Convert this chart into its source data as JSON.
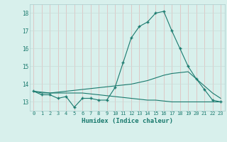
{
  "xlabel": "Humidex (Indice chaleur)",
  "x_values": [
    0,
    1,
    2,
    3,
    4,
    5,
    6,
    7,
    8,
    9,
    10,
    11,
    12,
    13,
    14,
    15,
    16,
    17,
    18,
    19,
    20,
    21,
    22,
    23
  ],
  "line1": [
    13.6,
    13.4,
    13.4,
    13.2,
    13.3,
    12.7,
    13.2,
    13.2,
    13.1,
    13.1,
    13.8,
    15.2,
    16.6,
    17.25,
    17.5,
    18.0,
    18.1,
    17.0,
    16.0,
    15.0,
    14.3,
    13.7,
    13.1,
    13.0
  ],
  "line2": [
    13.6,
    13.5,
    13.5,
    13.55,
    13.6,
    13.65,
    13.7,
    13.75,
    13.8,
    13.85,
    13.9,
    13.95,
    14.0,
    14.1,
    14.2,
    14.35,
    14.5,
    14.6,
    14.65,
    14.7,
    14.3,
    13.9,
    13.5,
    13.2
  ],
  "line3": [
    13.6,
    13.55,
    13.5,
    13.5,
    13.5,
    13.5,
    13.5,
    13.45,
    13.4,
    13.35,
    13.3,
    13.25,
    13.2,
    13.15,
    13.1,
    13.1,
    13.05,
    13.0,
    13.0,
    13.0,
    13.0,
    13.0,
    13.0,
    13.0
  ],
  "line_color": "#1a7a6e",
  "bg_color": "#d8f0ec",
  "grid_color": "#c8ddd8",
  "grid_color_v": "#e0b8b8",
  "ylim": [
    12.5,
    18.5
  ],
  "yticks": [
    13,
    14,
    15,
    16,
    17,
    18
  ],
  "xticks": [
    0,
    1,
    2,
    3,
    4,
    5,
    6,
    7,
    8,
    9,
    10,
    11,
    12,
    13,
    14,
    15,
    16,
    17,
    18,
    19,
    20,
    21,
    22,
    23
  ]
}
